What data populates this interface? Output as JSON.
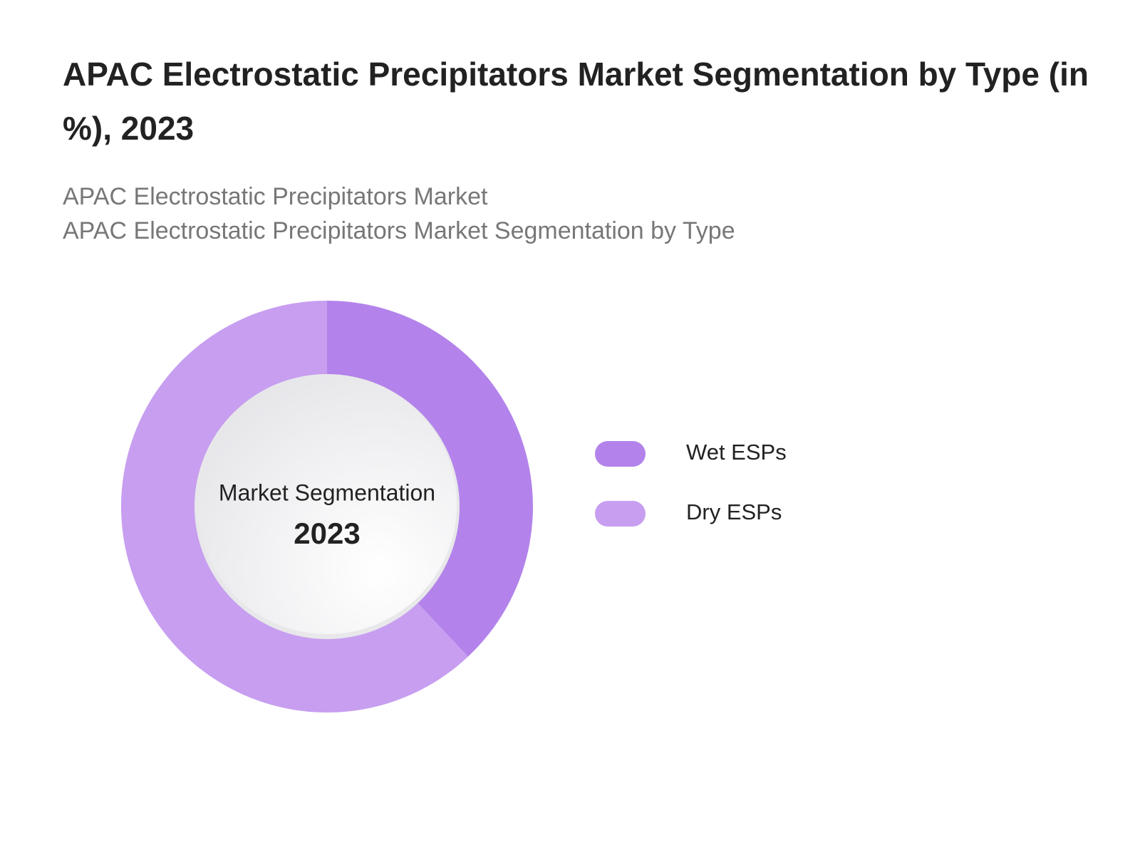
{
  "chart_data": {
    "type": "donut",
    "title": "APAC Electrostatic Precipitators Market Segmentation by Type (in %), 2023",
    "subtitle": [
      "APAC Electrostatic Precipitators Market",
      "APAC Electrostatic Precipitators Market Segmentation by Type"
    ],
    "center_label": "Market Segmentation",
    "center_value": "2023",
    "categories": [
      "Wet ESPs",
      "Dry ESPs"
    ],
    "values": [
      38,
      62
    ],
    "colors": [
      "#b383eb",
      "#c79ef0"
    ]
  }
}
